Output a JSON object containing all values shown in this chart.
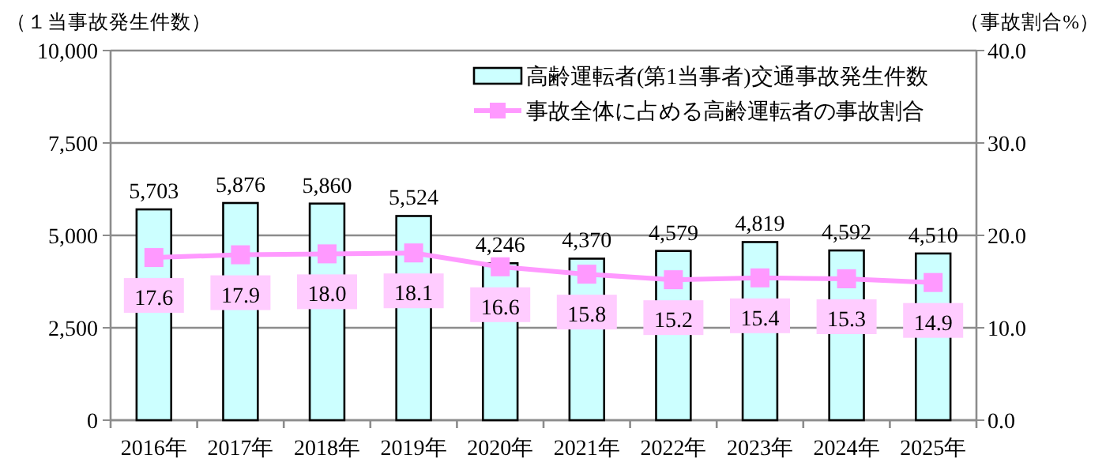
{
  "chart_data": {
    "type": "bar",
    "ylabel": "（１当事故発生件数）",
    "y2label": "（事故割合%）",
    "categories": [
      "2016年",
      "2017年",
      "2018年",
      "2019年",
      "2020年",
      "2021年",
      "2022年",
      "2023年",
      "2024年",
      "2025年"
    ],
    "series": [
      {
        "name": "高齢運転者(第1当事者)交通事故発生件数",
        "color": "#ccffff",
        "values": [
          5703,
          5876,
          5860,
          5524,
          4246,
          4370,
          4579,
          4819,
          4592,
          4510
        ],
        "value_labels": [
          "5,703",
          "5,876",
          "5,860",
          "5,524",
          "4,246",
          "4,370",
          "4,579",
          "4,819",
          "4,592",
          "4,510"
        ]
      },
      {
        "name": "事故全体に占める高齢運転者の事故割合",
        "type": "line",
        "axis": "y2",
        "color": "#ff99ff",
        "marker": "square",
        "values": [
          17.6,
          17.9,
          18.0,
          18.1,
          16.6,
          15.8,
          15.2,
          15.4,
          15.3,
          14.9
        ],
        "value_labels": [
          "17.6",
          "17.9",
          "18.0",
          "18.1",
          "16.6",
          "15.8",
          "15.2",
          "15.4",
          "15.3",
          "14.9"
        ]
      }
    ],
    "ylim": [
      0,
      10000
    ],
    "yticks": [
      0,
      {
        "value": 2500,
        "label": "2,500"
      },
      {
        "value": 5000,
        "label": "5,000"
      },
      {
        "value": 7500,
        "label": "7,500"
      },
      {
        "value": 10000,
        "label": "10,000"
      }
    ],
    "y2lim": [
      0,
      40
    ],
    "y2ticks": [
      {
        "value": 0,
        "label": "0.0"
      },
      {
        "value": 10,
        "label": "10.0"
      },
      {
        "value": 20,
        "label": "20.0"
      },
      {
        "value": 30,
        "label": "30.0"
      },
      {
        "value": 40,
        "label": "40.0"
      }
    ],
    "grid": "y",
    "legend": "top right"
  }
}
